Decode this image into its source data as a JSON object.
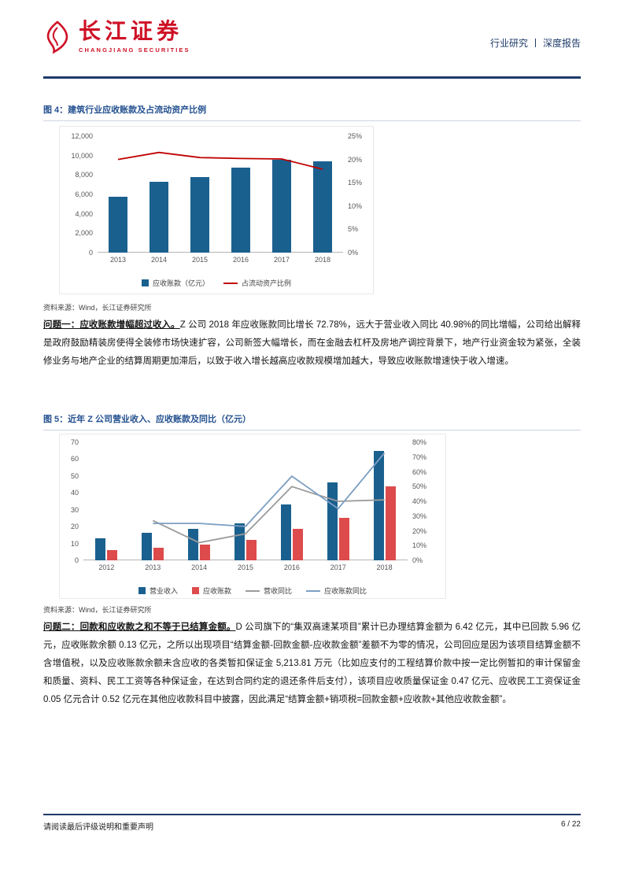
{
  "header": {
    "brand_cn": "长江证券",
    "brand_en": "CHANGJIANG SECURITIES",
    "category": "行业研究",
    "report_type": "深度报告"
  },
  "figure4": {
    "caption": "图 4：建筑行业应收账款及占流动资产比例",
    "source": "资料来源：Wind，长江证券研究所"
  },
  "figure5": {
    "caption": "图 5：近年 Z 公司营业收入、应收账款及同比（亿元）",
    "source": "资料来源：Wind，长江证券研究所"
  },
  "paragraph1": {
    "lead": "问题一：应收账款增幅超过收入。",
    "body": "Z 公司 2018 年应收账款同比增长 72.78%，远大于营业收入同比 40.98%的同比增幅，公司给出解释是政府鼓励精装房使得全装修市场快速扩容，公司新签大幅增长，而在金融去杠杆及房地产调控背景下，地产行业资金较为紧张，全装修业务与地产企业的结算周期更加滞后，以致于收入增长越高应收款规模增加越大，导致应收账款增速快于收入增速。"
  },
  "paragraph2": {
    "lead": "问题二：回款和应收款之和不等于已结算金额。",
    "body": "D 公司旗下的“集双高速某项目”累计已办理结算金额为 6.42 亿元，其中已回款 5.96 亿元，应收账款余额 0.13 亿元，之所以出现项目“结算金额-回款金额-应收款金额”差额不为零的情况，公司回应是因为该项目结算金额不含增值税，以及应收账款余额未含应收的各类暂扣保证金 5,213.81 万元（比如应支付的工程结算价款中按一定比例暂扣的审计保留金和质量、资料、民工工资等各种保证金，在达到合同约定的退还条件后支付），该项目应收质量保证金 0.47 亿元、应收民工工资保证金 0.05 亿元合计 0.52 亿元在其他应收款科目中披露，因此满足“结算金额+销项税=回款金额+应收款+其他应收款金额”。"
  },
  "footer": {
    "disclaimer": "请阅读最后评级说明和重要声明",
    "page": "6 / 22"
  },
  "chart_data": [
    {
      "type": "bar+line",
      "title": "建筑行业应收账款及占流动资产比例",
      "categories": [
        "2013",
        "2014",
        "2015",
        "2016",
        "2017",
        "2018"
      ],
      "series": [
        {
          "name": "应收账款（亿元）",
          "type": "bar",
          "axis": "left",
          "color": "#1a608f",
          "values": [
            5800,
            7300,
            7800,
            8800,
            9600,
            9400
          ]
        },
        {
          "name": "占流动资产比例",
          "type": "line",
          "axis": "right",
          "color": "#c00000",
          "values": [
            20.0,
            21.5,
            20.4,
            20.2,
            20.1,
            17.9
          ]
        }
      ],
      "left_axis": {
        "min": 0,
        "max": 12000,
        "ticks": [
          "12,000",
          "10,000",
          "8,000",
          "6,000",
          "4,000",
          "2,000",
          "0"
        ]
      },
      "right_axis": {
        "min": 0,
        "max": 25,
        "ticks": [
          "25%",
          "20%",
          "15%",
          "10%",
          "5%",
          "0%"
        ]
      },
      "xlabel": "",
      "ylabel": "",
      "legend_position": "bottom",
      "grid": false
    },
    {
      "type": "bar+line",
      "title": "近年 Z 公司营业收入、应收账款及同比（亿元）",
      "categories": [
        "2012",
        "2013",
        "2014",
        "2015",
        "2016",
        "2017",
        "2018"
      ],
      "series": [
        {
          "name": "营业收入",
          "type": "bar",
          "axis": "left",
          "color": "#1a608f",
          "values": [
            13,
            16.5,
            18.5,
            22,
            33,
            46,
            65
          ]
        },
        {
          "name": "应收账款",
          "type": "bar",
          "axis": "left",
          "color": "#dd4b4c",
          "values": [
            6,
            7.5,
            9.5,
            12,
            18.5,
            25,
            44
          ]
        },
        {
          "name": "营收同比",
          "type": "line",
          "axis": "right",
          "color": "#9b9b9b",
          "values": [
            null,
            27,
            12,
            18,
            50,
            40,
            40.98
          ]
        },
        {
          "name": "应收账款同比",
          "type": "line",
          "axis": "right",
          "color": "#7c9fc2",
          "values": [
            null,
            25,
            25,
            23,
            57,
            35,
            72.78
          ]
        }
      ],
      "left_axis": {
        "min": 0,
        "max": 70,
        "ticks": [
          "70",
          "60",
          "50",
          "40",
          "30",
          "20",
          "10",
          "0"
        ]
      },
      "right_axis": {
        "min": 0,
        "max": 80,
        "ticks": [
          "80%",
          "70%",
          "60%",
          "50%",
          "40%",
          "30%",
          "20%",
          "10%",
          "0%"
        ]
      },
      "xlabel": "",
      "ylabel": "",
      "legend_position": "bottom",
      "grid": false
    }
  ]
}
